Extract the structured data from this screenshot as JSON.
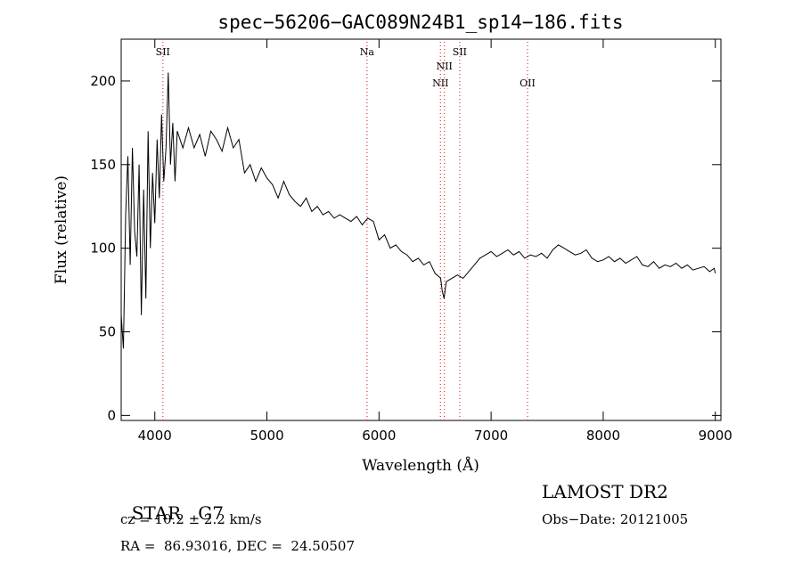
{
  "chart_data": {
    "type": "line",
    "title": "spec−56206−GAC089N24B1_sp14−186.fits",
    "xlabel": "Wavelength (Å)",
    "ylabel": "Flux (relative)",
    "xlim": [
      3700,
      9050
    ],
    "ylim": [
      -3,
      225
    ],
    "xticks": [
      4000,
      5000,
      6000,
      7000,
      8000,
      9000
    ],
    "yticks": [
      0,
      50,
      100,
      150,
      200
    ],
    "grid": false,
    "series": [
      {
        "x": [
          3700,
          3720,
          3740,
          3760,
          3780,
          3800,
          3820,
          3840,
          3860,
          3880,
          3900,
          3920,
          3940,
          3960,
          3980,
          4000,
          4020,
          4040,
          4060,
          4080,
          4100,
          4120,
          4140,
          4160,
          4180,
          4200,
          4250,
          4300,
          4350,
          4400,
          4450,
          4500,
          4550,
          4600,
          4650,
          4700,
          4750,
          4800,
          4850,
          4900,
          4950,
          5000,
          5050,
          5100,
          5150,
          5200,
          5250,
          5300,
          5350,
          5400,
          5450,
          5500,
          5550,
          5600,
          5650,
          5700,
          5750,
          5800,
          5850,
          5900,
          5950,
          6000,
          6050,
          6100,
          6150,
          6200,
          6250,
          6300,
          6350,
          6400,
          6450,
          6500,
          6550,
          6563,
          6580,
          6600,
          6650,
          6700,
          6750,
          6800,
          6850,
          6900,
          6950,
          7000,
          7050,
          7100,
          7150,
          7200,
          7250,
          7300,
          7350,
          7400,
          7450,
          7500,
          7550,
          7600,
          7650,
          7700,
          7750,
          7800,
          7850,
          7900,
          7950,
          8000,
          8050,
          8100,
          8150,
          8200,
          8250,
          8300,
          8350,
          8400,
          8450,
          8500,
          8550,
          8600,
          8650,
          8700,
          8750,
          8800,
          8850,
          8900,
          8950,
          8990,
          9000
        ],
        "y": [
          60,
          40,
          120,
          155,
          90,
          160,
          110,
          95,
          150,
          60,
          135,
          70,
          170,
          100,
          145,
          115,
          165,
          130,
          180,
          140,
          160,
          205,
          150,
          175,
          140,
          170,
          160,
          172,
          160,
          168,
          155,
          170,
          165,
          158,
          172,
          160,
          165,
          145,
          150,
          140,
          148,
          142,
          138,
          130,
          140,
          132,
          128,
          125,
          130,
          122,
          125,
          120,
          122,
          118,
          120,
          118,
          116,
          119,
          114,
          118,
          116,
          105,
          108,
          100,
          102,
          98,
          96,
          92,
          94,
          90,
          92,
          85,
          82,
          75,
          70,
          80,
          82,
          84,
          82,
          86,
          90,
          94,
          96,
          98,
          95,
          97,
          99,
          96,
          98,
          94,
          96,
          95,
          97,
          94,
          99,
          102,
          100,
          98,
          96,
          97,
          99,
          94,
          92,
          93,
          95,
          92,
          94,
          91,
          93,
          95,
          90,
          89,
          92,
          88,
          90,
          89,
          91,
          88,
          90,
          87,
          88,
          89,
          86,
          88,
          85
        ]
      }
    ],
    "lines": [
      {
        "label": "SII",
        "x": 4072,
        "row": 0
      },
      {
        "label": "Na",
        "x": 5893,
        "row": 0
      },
      {
        "label": "NII",
        "x": 6583,
        "row": 1
      },
      {
        "label": "NII",
        "x": 6548,
        "row": 2
      },
      {
        "label": "OII",
        "x": 7325,
        "row": 2
      },
      {
        "label": "SII",
        "x": 6720,
        "row": 0
      }
    ],
    "line_color": "#e0302f"
  },
  "info": {
    "object_type": "STAR",
    "subclass": "G7",
    "survey": "LAMOST DR2",
    "cz": "cz = 10.2 ± 2.2 km/s",
    "obs_date": "Obs−Date: 20121005",
    "radec": "RA =  86.93016, DEC =  24.50507"
  }
}
